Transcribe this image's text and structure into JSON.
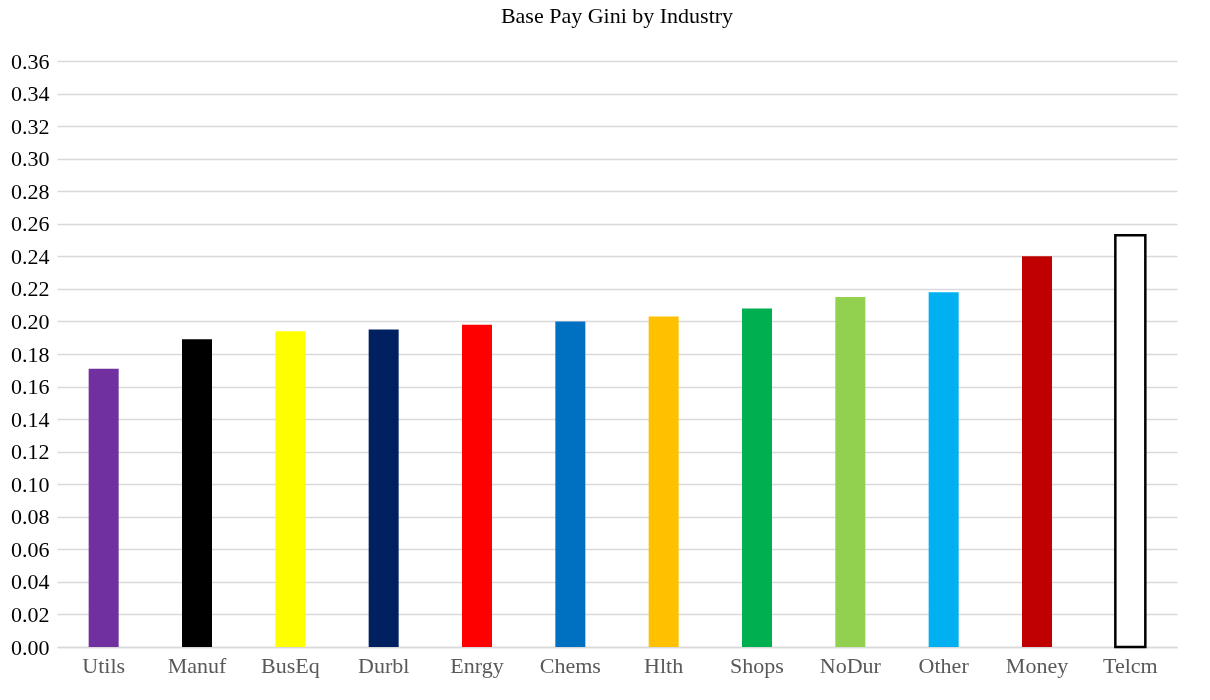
{
  "chart_data": {
    "type": "bar",
    "title": "Base Pay Gini by Industry",
    "categories": [
      "Utils",
      "Manuf",
      "BusEq",
      "Durbl",
      "Enrgy",
      "Chems",
      "Hlth",
      "Shops",
      "NoDur",
      "Other",
      "Money",
      "Telcm"
    ],
    "values": [
      0.171,
      0.189,
      0.194,
      0.195,
      0.198,
      0.2,
      0.203,
      0.208,
      0.215,
      0.218,
      0.24,
      0.253
    ],
    "colors": [
      "#7030a0",
      "#000000",
      "#ffff00",
      "#002060",
      "#ff0000",
      "#0070c0",
      "#ffc000",
      "#00b050",
      "#92d050",
      "#00b0f0",
      "#c00000",
      "#ffffff"
    ],
    "ylim": [
      0,
      0.36
    ],
    "yticks": [
      {
        "value": 0,
        "label": "0.00"
      },
      {
        "value": 0.02,
        "label": "0.02"
      },
      {
        "value": 0.04,
        "label": "0.04"
      },
      {
        "value": 0.06,
        "label": "0.06"
      },
      {
        "value": 0.08,
        "label": "0.08"
      },
      {
        "value": 0.1,
        "label": "0.10"
      },
      {
        "value": 0.12,
        "label": "0.12"
      },
      {
        "value": 0.14,
        "label": "0.14"
      },
      {
        "value": 0.16,
        "label": "0.16"
      },
      {
        "value": 0.18,
        "label": "0.18"
      },
      {
        "value": 0.2,
        "label": "0.20"
      },
      {
        "value": 0.22,
        "label": "0.22"
      },
      {
        "value": 0.24,
        "label": "0.24"
      },
      {
        "value": 0.26,
        "label": "0.26"
      },
      {
        "value": 0.28,
        "label": "0.28"
      },
      {
        "value": 0.3,
        "label": "0.30"
      },
      {
        "value": 0.32,
        "label": "0.32"
      },
      {
        "value": 0.34,
        "label": "0.34"
      },
      {
        "value": 0.36,
        "label": "0.36"
      }
    ],
    "grid": "y"
  }
}
